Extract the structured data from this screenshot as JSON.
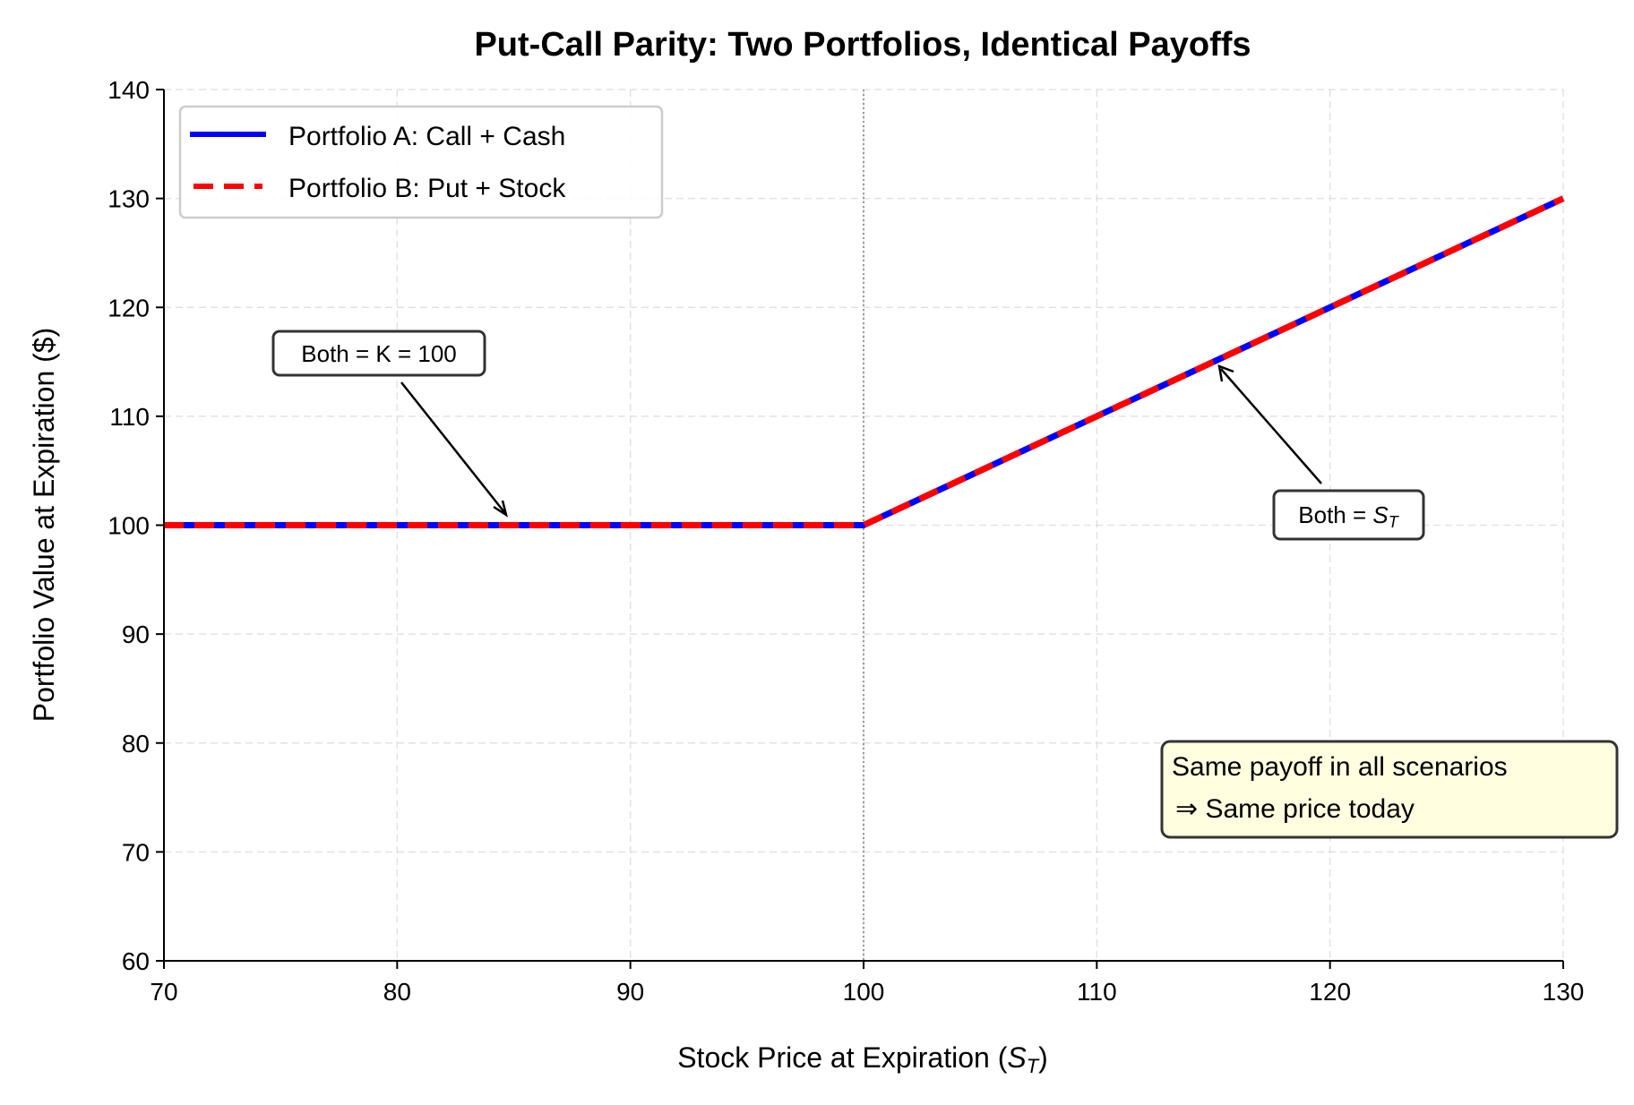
{
  "chart_data": {
    "type": "line",
    "title": "Put-Call Parity: Two Portfolios, Identical Payoffs",
    "xlabel": "Stock Price at Expiration (S_T)",
    "xlabel_main": "Stock Price at Expiration (",
    "xlabel_sym": "S",
    "xlabel_sub": "T",
    "xlabel_close": ")",
    "ylabel": "Portfolio Value at Expiration ($)",
    "xlim": [
      70,
      130
    ],
    "ylim": [
      60,
      140
    ],
    "xticks": [
      70,
      80,
      90,
      100,
      110,
      120,
      130
    ],
    "yticks": [
      60,
      70,
      80,
      90,
      100,
      110,
      120,
      130,
      140
    ],
    "grid": true,
    "legend_position": "top-left",
    "strike_line_x": 100,
    "series": [
      {
        "name": "Portfolio A: Call + Cash",
        "color": "#0000ff",
        "style": "solid",
        "x": [
          70,
          100,
          130
        ],
        "y": [
          100,
          100,
          130
        ]
      },
      {
        "name": "Portfolio B: Put + Stock",
        "color": "#ff0000",
        "style": "dashed",
        "x": [
          70,
          100,
          130
        ],
        "y": [
          100,
          100,
          130
        ]
      }
    ],
    "annotations": [
      {
        "text": "Both = K = 100",
        "point": [
          85,
          100
        ]
      },
      {
        "text_main": "Both = ",
        "text_sym": "S",
        "text_sub": "T",
        "point": [
          115,
          115
        ]
      }
    ],
    "note": {
      "line1": "Same payoff in all scenarios",
      "line2": "⇒  Same price today",
      "background": "#ffffe0"
    }
  }
}
